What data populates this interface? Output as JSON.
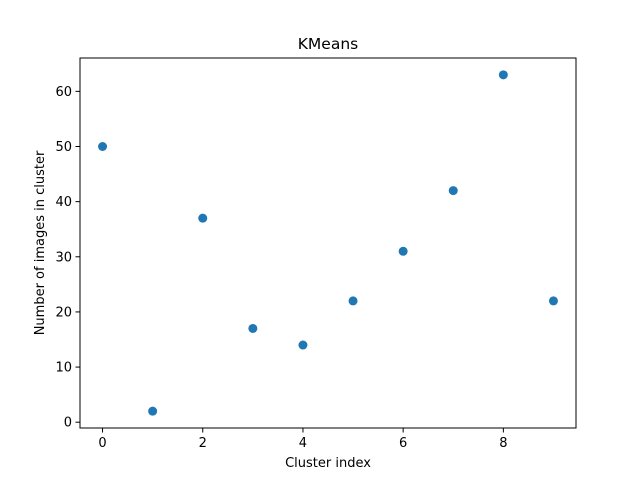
{
  "chart_data": {
    "type": "scatter",
    "title": "KMeans",
    "xlabel": "Cluster index",
    "ylabel": "Number of images in cluster",
    "x": [
      0,
      1,
      2,
      3,
      4,
      5,
      6,
      7,
      8,
      9
    ],
    "y": [
      50,
      2,
      37,
      17,
      14,
      22,
      31,
      42,
      63,
      22
    ],
    "xlim": [
      -0.45,
      9.45
    ],
    "ylim": [
      -1.05,
      66.05
    ],
    "xticks": [
      0,
      2,
      4,
      6,
      8
    ],
    "yticks": [
      0,
      10,
      20,
      30,
      40,
      50,
      60
    ],
    "grid": false,
    "colors": {
      "points": "#1f77b4",
      "axes": "#000000",
      "background": "#ffffff"
    }
  }
}
